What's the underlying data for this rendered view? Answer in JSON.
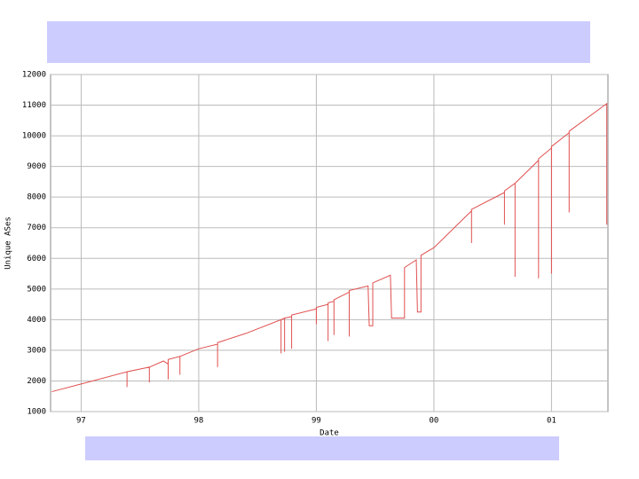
{
  "chart_data": {
    "type": "line",
    "x_label": "Date",
    "y_label": "Unique ASes",
    "color": "#e05050",
    "grid": true,
    "xlim": [
      1996.74,
      2001.48
    ],
    "ylim": [
      1000,
      12000
    ],
    "xticks": [
      {
        "value": 1997,
        "label": "97"
      },
      {
        "value": 1998,
        "label": "98"
      },
      {
        "value": 1999,
        "label": "99"
      },
      {
        "value": 2000,
        "label": "00"
      },
      {
        "value": 2001,
        "label": "01"
      }
    ],
    "yticks": [
      1000,
      2000,
      3000,
      4000,
      5000,
      6000,
      7000,
      8000,
      9000,
      10000,
      11000,
      12000
    ],
    "x": [
      1996.75,
      1997.0,
      1997.39,
      1997.39,
      1997.39,
      1997.58,
      1997.58,
      1997.58,
      1997.7,
      1997.74,
      1997.74,
      1997.74,
      1997.84,
      1997.84,
      1997.84,
      1998.0,
      1998.16,
      1998.16,
      1998.16,
      1998.4,
      1998.7,
      1998.7,
      1998.7,
      1998.73,
      1998.73,
      1998.73,
      1998.79,
      1998.79,
      1998.79,
      1999.0,
      1999.0,
      1999.0,
      1999.1,
      1999.1,
      1999.1,
      1999.15,
      1999.15,
      1999.15,
      1999.28,
      1999.28,
      1999.28,
      1999.44,
      1999.45,
      1999.48,
      1999.48,
      1999.63,
      1999.64,
      1999.75,
      1999.75,
      1999.85,
      1999.86,
      1999.89,
      1999.89,
      2000.0,
      2000.32,
      2000.32,
      2000.32,
      2000.6,
      2000.6,
      2000.6,
      2000.69,
      2000.69,
      2000.69,
      2000.89,
      2000.89,
      2000.89,
      2001.0,
      2001.0,
      2001.0,
      2001.15,
      2001.15,
      2001.15,
      2001.47,
      2001.47
    ],
    "values": [
      1650,
      1900,
      2300,
      1800,
      2300,
      2450,
      1950,
      2450,
      2650,
      2550,
      2050,
      2700,
      2800,
      2200,
      2800,
      3050,
      3200,
      2450,
      3250,
      3550,
      4000,
      2900,
      4000,
      4050,
      2950,
      4050,
      4100,
      3050,
      4150,
      4350,
      3850,
      4400,
      4500,
      3300,
      4550,
      4600,
      3500,
      4650,
      4900,
      3450,
      4950,
      5100,
      3800,
      3800,
      5200,
      5450,
      4050,
      4050,
      5700,
      5950,
      4250,
      4250,
      6100,
      6350,
      7550,
      6500,
      7600,
      8150,
      7100,
      8200,
      8450,
      5400,
      8450,
      9200,
      5350,
      9250,
      9600,
      5500,
      9650,
      10100,
      7500,
      10150,
      11050,
      7100
    ]
  }
}
